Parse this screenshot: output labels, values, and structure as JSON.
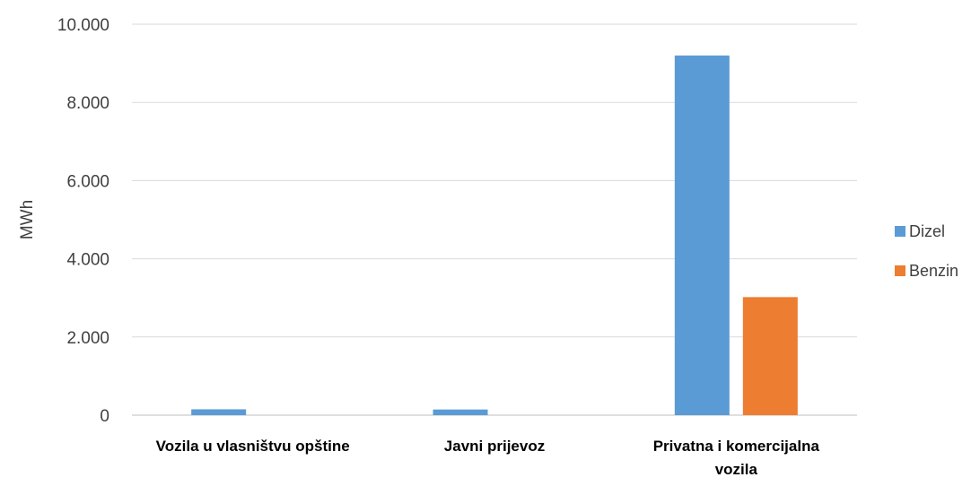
{
  "chart_data": {
    "type": "bar",
    "title": "",
    "xlabel": "",
    "ylabel": "MWh",
    "categories": [
      [
        "Vozila u vlasništvu opštine"
      ],
      [
        "Javni prijevoz"
      ],
      [
        "Privatna i komercijalna",
        "vozila"
      ]
    ],
    "series": [
      {
        "name": "Dizel",
        "color": "#5B9BD5",
        "values": [
          150,
          145,
          9200
        ]
      },
      {
        "name": "Benzin",
        "color": "#ED7D31",
        "values": [
          0,
          0,
          3020
        ]
      }
    ],
    "ylim": [
      0,
      10000
    ],
    "y_ticks": [
      "0",
      "2.000",
      "4.000",
      "6.000",
      "8.000",
      "10.000"
    ],
    "grid": true,
    "legend_position": "right"
  }
}
